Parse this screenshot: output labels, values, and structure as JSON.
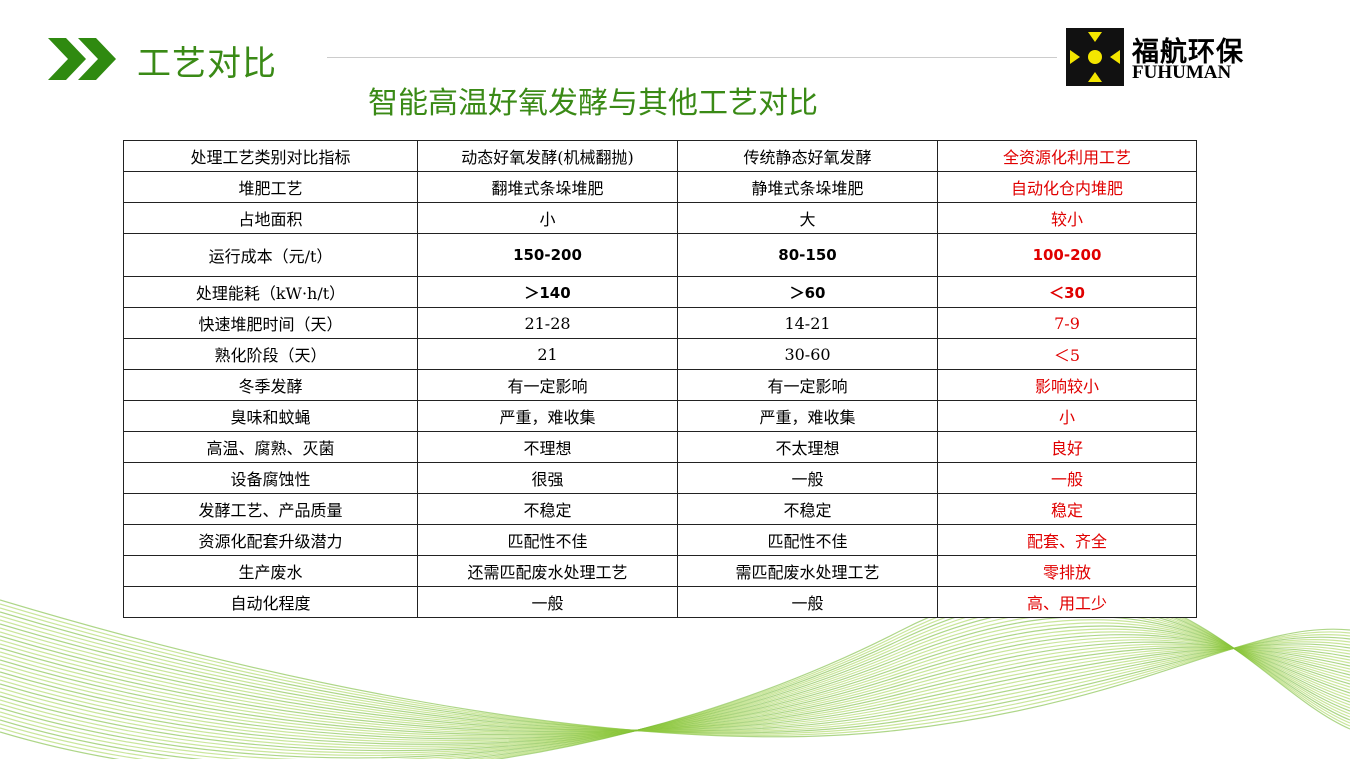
{
  "header": {
    "section_title": "工艺对比",
    "main_title": "智能高温好氧发酵与其他工艺对比"
  },
  "logo": {
    "cn": "福航环保",
    "en": "FUHUMAN"
  },
  "colors": {
    "green": "#3a8a16",
    "highlight": "#e00000"
  },
  "table": {
    "headers": [
      "处理工艺类别对比指标",
      "动态好氧发酵(机械翻抛)",
      "传统静态好氧发酵",
      "全资源化利用工艺"
    ],
    "rows": [
      [
        "堆肥工艺",
        "翻堆式条垛堆肥",
        "静堆式条垛堆肥",
        "自动化仓内堆肥"
      ],
      [
        "占地面积",
        "小",
        "大",
        "较小"
      ],
      [
        "运行成本（元/t）",
        "150-200",
        "80-150",
        "100-200"
      ],
      [
        "处理能耗（kW·h/t）",
        "＞140",
        "＞60",
        "＜30"
      ],
      [
        "快速堆肥时间（天）",
        "21-28",
        "14-21",
        "7-9"
      ],
      [
        "熟化阶段（天）",
        "21",
        "30-60",
        "＜5"
      ],
      [
        "冬季发酵",
        "有一定影响",
        "有一定影响",
        "影响较小"
      ],
      [
        "臭味和蚊蝇",
        "严重，难收集",
        "严重，难收集",
        "小"
      ],
      [
        "高温、腐熟、灭菌",
        "不理想",
        "不太理想",
        "良好"
      ],
      [
        "设备腐蚀性",
        "很强",
        "一般",
        "一般"
      ],
      [
        "发酵工艺、产品质量",
        "不稳定",
        "不稳定",
        "稳定"
      ],
      [
        "资源化配套升级潜力",
        "匹配性不佳",
        "匹配性不佳",
        "配套、齐全"
      ],
      [
        "生产废水",
        "还需匹配废水处理工艺",
        "需匹配废水处理工艺",
        "零排放"
      ],
      [
        "自动化程度",
        "一般",
        "一般",
        "高、用工少"
      ]
    ]
  }
}
